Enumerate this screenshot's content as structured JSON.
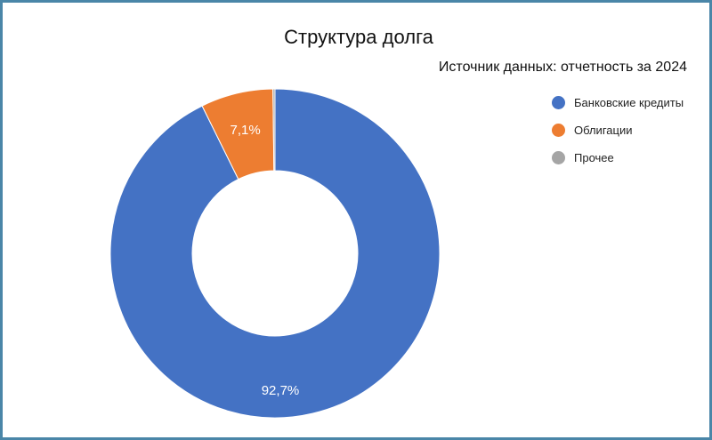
{
  "chart_data": {
    "type": "pie",
    "donut": true,
    "title": "Структура долга",
    "subtitle": "Источник данных: отчетность за 2024",
    "legend_position": "right",
    "slices": [
      {
        "name": "Банковские кредиты",
        "value": 92.7,
        "label": "92,7%",
        "color": "#4472c4"
      },
      {
        "name": "Облигации",
        "value": 7.1,
        "label": "7,1%",
        "color": "#ed7d31"
      },
      {
        "name": "Прочее",
        "value": 0.2,
        "label": "",
        "color": "#a5a5a5"
      }
    ]
  }
}
